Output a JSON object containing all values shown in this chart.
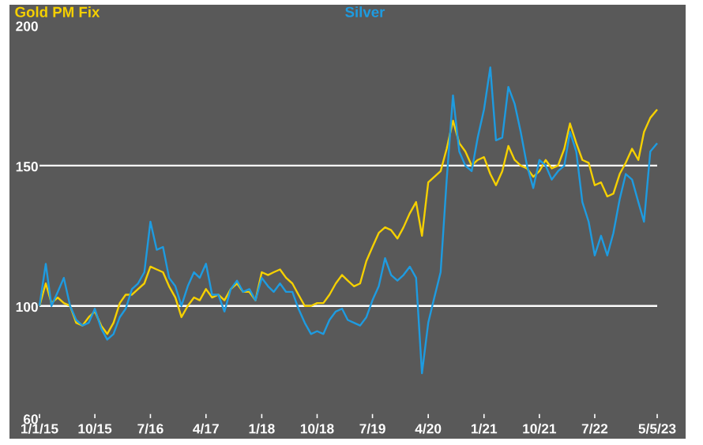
{
  "chart_data": {
    "type": "line",
    "x": [
      "2015-01",
      "2015-02",
      "2015-03",
      "2015-04",
      "2015-05",
      "2015-06",
      "2015-07",
      "2015-08",
      "2015-09",
      "2015-10",
      "2015-11",
      "2015-12",
      "2016-01",
      "2016-02",
      "2016-03",
      "2016-04",
      "2016-05",
      "2016-06",
      "2016-07",
      "2016-08",
      "2016-09",
      "2016-10",
      "2016-11",
      "2016-12",
      "2017-01",
      "2017-02",
      "2017-03",
      "2017-04",
      "2017-05",
      "2017-06",
      "2017-07",
      "2017-08",
      "2017-09",
      "2017-10",
      "2017-11",
      "2017-12",
      "2018-01",
      "2018-02",
      "2018-03",
      "2018-04",
      "2018-05",
      "2018-06",
      "2018-07",
      "2018-08",
      "2018-09",
      "2018-10",
      "2018-11",
      "2018-12",
      "2019-01",
      "2019-02",
      "2019-03",
      "2019-04",
      "2019-05",
      "2019-06",
      "2019-07",
      "2019-08",
      "2019-09",
      "2019-10",
      "2019-11",
      "2019-12",
      "2020-01",
      "2020-02",
      "2020-03",
      "2020-04",
      "2020-05",
      "2020-06",
      "2020-07",
      "2020-08",
      "2020-09",
      "2020-10",
      "2020-11",
      "2020-12",
      "2021-01",
      "2021-02",
      "2021-03",
      "2021-04",
      "2021-05",
      "2021-06",
      "2021-07",
      "2021-08",
      "2021-09",
      "2021-10",
      "2021-11",
      "2021-12",
      "2022-01",
      "2022-02",
      "2022-03",
      "2022-04",
      "2022-05",
      "2022-06",
      "2022-07",
      "2022-08",
      "2022-09",
      "2022-10",
      "2022-11",
      "2022-12",
      "2023-01",
      "2023-02",
      "2023-03",
      "2023-04",
      "2023-05-05"
    ],
    "series": [
      {
        "name": "Gold PM Fix",
        "color": "#f5d000",
        "values": [
          100,
          108,
          101,
          103,
          101,
          100,
          94,
          93,
          96,
          98,
          93,
          90,
          94,
          101,
          104,
          104,
          106,
          108,
          114,
          113,
          112,
          107,
          103,
          96,
          100,
          103,
          102,
          106,
          103,
          104,
          102,
          106,
          108,
          105,
          105,
          102,
          112,
          111,
          112,
          113,
          110,
          108,
          104,
          100,
          100,
          101,
          101,
          104,
          108,
          111,
          109,
          107,
          108,
          116,
          121,
          126,
          128,
          127,
          124,
          128,
          133,
          137,
          125,
          144,
          146,
          148,
          156,
          166,
          158,
          155,
          150,
          152,
          153,
          147,
          143,
          148,
          157,
          152,
          150,
          149,
          146,
          148,
          152,
          149,
          150,
          156,
          165,
          158,
          152,
          151,
          143,
          144,
          139,
          140,
          147,
          151,
          156,
          152,
          162,
          167,
          170
        ]
      },
      {
        "name": "Silver",
        "color": "#1e9be0",
        "values": [
          100,
          115,
          100,
          105,
          110,
          100,
          95,
          93,
          94,
          99,
          92,
          88,
          90,
          96,
          99,
          106,
          108,
          112,
          130,
          120,
          121,
          110,
          107,
          100,
          107,
          112,
          110,
          115,
          104,
          104,
          98,
          106,
          109,
          105,
          106,
          102,
          110,
          107,
          105,
          108,
          105,
          105,
          99,
          94,
          90,
          91,
          90,
          95,
          98,
          99,
          95,
          94,
          93,
          96,
          102,
          107,
          117,
          111,
          109,
          111,
          114,
          110,
          76,
          94,
          103,
          112,
          145,
          175,
          155,
          150,
          148,
          160,
          170,
          185,
          159,
          160,
          178,
          172,
          162,
          150,
          142,
          152,
          150,
          145,
          148,
          150,
          162,
          155,
          137,
          130,
          118,
          125,
          118,
          126,
          138,
          147,
          145,
          137,
          130,
          155,
          158
        ]
      }
    ],
    "xlim": [
      "2015-01-01",
      "2023-05-05"
    ],
    "xticks": [
      {
        "value": "2015-01-01",
        "label": "1/1/15"
      },
      {
        "value": "2015-10-01",
        "label": "10/15"
      },
      {
        "value": "2016-07-01",
        "label": "7/16"
      },
      {
        "value": "2017-04-01",
        "label": "4/17"
      },
      {
        "value": "2018-01-01",
        "label": "1/18"
      },
      {
        "value": "2018-10-01",
        "label": "10/18"
      },
      {
        "value": "2019-07-01",
        "label": "7/19"
      },
      {
        "value": "2020-04-01",
        "label": "4/20"
      },
      {
        "value": "2021-01-01",
        "label": "1/21"
      },
      {
        "value": "2021-10-01",
        "label": "10/21"
      },
      {
        "value": "2022-07-01",
        "label": "7/22"
      },
      {
        "value": "2023-05-05",
        "label": "5/5/23"
      }
    ],
    "ylim": [
      60,
      200
    ],
    "yticks": [
      60,
      100,
      150,
      200
    ],
    "ref_lines": [
      {
        "axis": "y",
        "value": 100,
        "color": "#ffffff"
      },
      {
        "axis": "y",
        "value": 150,
        "color": "#ffffff"
      }
    ],
    "legend": "top"
  }
}
